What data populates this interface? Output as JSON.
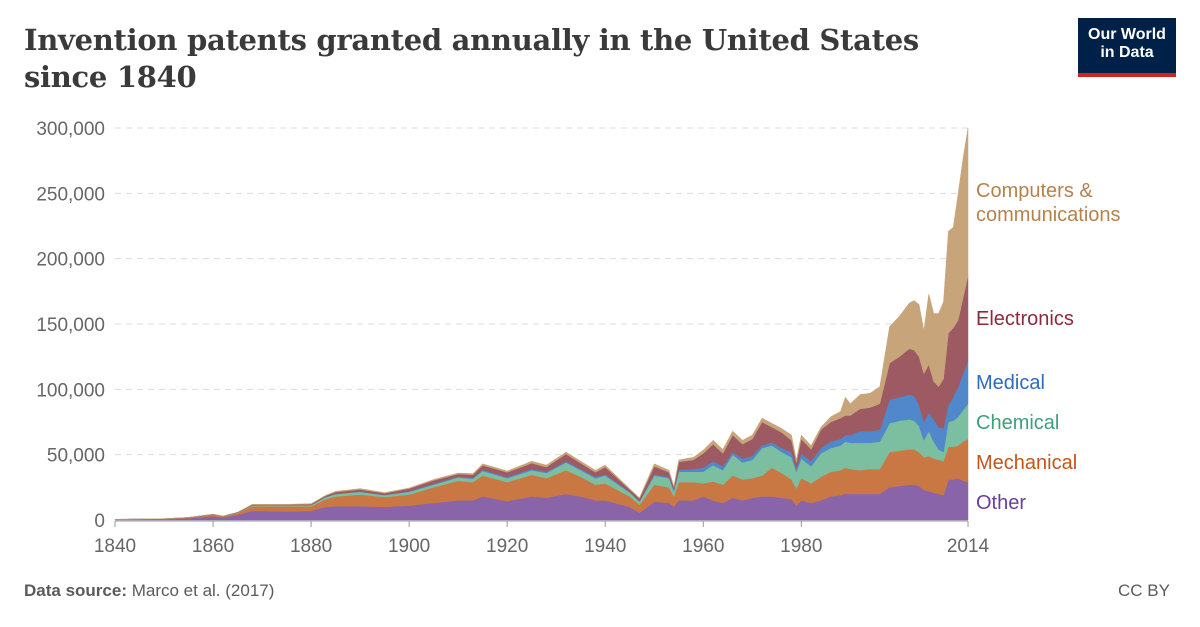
{
  "title": "Invention patents granted annually in the United States since 1840",
  "logo": {
    "line1": "Our World",
    "line2": "in Data"
  },
  "footer": {
    "source_label": "Data source:",
    "source": "Marco et al. (2017)",
    "license": "CC BY"
  },
  "chart_data": {
    "type": "area",
    "stacked": true,
    "title": "Invention patents granted annually in the United States since 1840",
    "xlabel": "",
    "ylabel": "",
    "xlim": [
      1840,
      2014
    ],
    "ylim": [
      0,
      300000
    ],
    "grid": "horizontal dashed",
    "legend": "right (inline labels)",
    "x_ticks": [
      1840,
      1860,
      1880,
      1900,
      1920,
      1940,
      1960,
      1980,
      2014
    ],
    "y_ticks": [
      0,
      50000,
      100000,
      150000,
      200000,
      250000,
      300000
    ],
    "y_tick_labels": [
      "0",
      "50,000",
      "100,000",
      "150,000",
      "200,000",
      "250,000",
      "300,000"
    ],
    "x": [
      1840,
      1850,
      1855,
      1860,
      1862,
      1865,
      1868,
      1870,
      1875,
      1880,
      1883,
      1885,
      1890,
      1895,
      1900,
      1905,
      1910,
      1913,
      1915,
      1920,
      1925,
      1928,
      1932,
      1935,
      1938,
      1940,
      1945,
      1947,
      1950,
      1953,
      1954,
      1955,
      1958,
      1960,
      1962,
      1964,
      1966,
      1968,
      1970,
      1972,
      1974,
      1976,
      1978,
      1979,
      1980,
      1982,
      1984,
      1986,
      1988,
      1989,
      1990,
      1992,
      1994,
      1996,
      1998,
      2000,
      2002,
      2003,
      2004,
      2005,
      2006,
      2007,
      2008,
      2009,
      2010,
      2011,
      2012,
      2013,
      2014
    ],
    "series": [
      {
        "name": "Other",
        "color": "#8a64a8",
        "label_color": "#6b3e9c",
        "values": [
          300,
          600,
          1300,
          2800,
          2000,
          4000,
          7000,
          7000,
          6500,
          7000,
          10000,
          10500,
          10500,
          10000,
          11000,
          13000,
          15000,
          15000,
          18000,
          14500,
          18000,
          17000,
          20000,
          18000,
          15000,
          15000,
          10000,
          5500,
          14000,
          13000,
          10000,
          15000,
          15000,
          18000,
          15000,
          13000,
          17000,
          15000,
          17000,
          18000,
          18000,
          17000,
          16000,
          11000,
          15000,
          13000,
          15000,
          18000,
          19000,
          20000,
          20000,
          20000,
          20000,
          20000,
          25000,
          26000,
          27000,
          27000,
          26000,
          23000,
          22000,
          21000,
          20000,
          19000,
          31000,
          31000,
          32000,
          30000,
          29000
        ]
      },
      {
        "name": "Mechanical",
        "color": "#c97844",
        "label_color": "#c2561c",
        "values": [
          100,
          250,
          500,
          1200,
          700,
          1300,
          3500,
          3500,
          4000,
          3500,
          6000,
          7500,
          9000,
          7500,
          8500,
          12000,
          15000,
          14000,
          16000,
          14500,
          16500,
          15000,
          18000,
          15000,
          12000,
          13000,
          8000,
          6000,
          13000,
          12000,
          8000,
          14000,
          14000,
          10000,
          14500,
          14000,
          17000,
          16000,
          15000,
          16000,
          22000,
          19000,
          15000,
          13000,
          17000,
          15000,
          18000,
          19000,
          19000,
          20000,
          19000,
          18000,
          19000,
          19000,
          27000,
          27000,
          27000,
          27000,
          26000,
          25000,
          27000,
          26000,
          26000,
          26000,
          25000,
          25000,
          25000,
          30000,
          33000
        ]
      },
      {
        "name": "Chemical",
        "color": "#7cbea0",
        "label_color": "#3f9f7c",
        "values": [
          50,
          50,
          100,
          200,
          100,
          300,
          700,
          800,
          800,
          900,
          1500,
          1800,
          2000,
          1500,
          2000,
          2000,
          2500,
          2500,
          3500,
          3000,
          3500,
          4000,
          6000,
          5000,
          5000,
          6000,
          3000,
          2500,
          7000,
          7000,
          4000,
          8000,
          8000,
          9000,
          12500,
          11000,
          16000,
          13000,
          14000,
          21000,
          17000,
          16000,
          17000,
          13000,
          15000,
          13000,
          18000,
          18000,
          19000,
          20000,
          20000,
          21000,
          20000,
          21000,
          22000,
          23000,
          23000,
          22000,
          20000,
          13000,
          19000,
          13000,
          8000,
          7000,
          19000,
          20000,
          22000,
          24000,
          27000
        ]
      },
      {
        "name": "Medical",
        "color": "#5088cb",
        "label_color": "#2c6bbf",
        "values": [
          0,
          0,
          0,
          0,
          0,
          0,
          100,
          100,
          100,
          100,
          200,
          200,
          300,
          300,
          500,
          700,
          700,
          800,
          1000,
          1000,
          1000,
          1000,
          1000,
          1000,
          1000,
          1000,
          500,
          300,
          1000,
          1000,
          1000,
          1500,
          2000,
          3000,
          3000,
          3000,
          2000,
          3000,
          3000,
          2000,
          2500,
          3000,
          4000,
          2000,
          4000,
          4000,
          4000,
          5000,
          5000,
          5000,
          6000,
          9000,
          9000,
          9000,
          18000,
          18000,
          19000,
          19000,
          16000,
          14000,
          14000,
          17000,
          17000,
          18000,
          13000,
          18000,
          23000,
          28000,
          33000
        ]
      },
      {
        "name": "Electronics",
        "color": "#9e5a62",
        "label_color": "#8c2a3a",
        "values": [
          50,
          100,
          100,
          200,
          150,
          300,
          500,
          400,
          400,
          700,
          900,
          1400,
          1600,
          1200,
          2000,
          2600,
          2000,
          2300,
          3300,
          3500,
          4500,
          3500,
          5500,
          4500,
          3500,
          5500,
          1800,
          2200,
          6000,
          3500,
          2000,
          6000,
          7000,
          11000,
          13000,
          10000,
          13000,
          11000,
          13000,
          18000,
          11500,
          12000,
          9000,
          5000,
          11000,
          9000,
          14000,
          15000,
          16000,
          15000,
          15000,
          17000,
          18000,
          20000,
          28000,
          31000,
          35000,
          35000,
          37000,
          37000,
          37000,
          29000,
          31000,
          38000,
          55000,
          53000,
          51000,
          58000,
          65000
        ]
      },
      {
        "name": "Computers & communications",
        "color": "#c8a47a",
        "label_color": "#b5824c",
        "values": [
          0,
          0,
          0,
          100,
          50,
          100,
          200,
          200,
          200,
          300,
          400,
          600,
          600,
          500,
          500,
          700,
          800,
          900,
          1200,
          1000,
          1500,
          1500,
          1500,
          1500,
          1500,
          1500,
          700,
          500,
          2000,
          1500,
          1000,
          1500,
          2000,
          2600,
          3000,
          3000,
          3000,
          3000,
          3000,
          3000,
          3000,
          3000,
          4000,
          2000,
          3000,
          3000,
          2000,
          4000,
          5000,
          14000,
          9000,
          11000,
          11000,
          13000,
          28000,
          31000,
          35000,
          38000,
          40000,
          33000,
          54000,
          52000,
          56000,
          59000,
          78000,
          77000,
          97000,
          107000,
          113000
        ]
      }
    ]
  }
}
